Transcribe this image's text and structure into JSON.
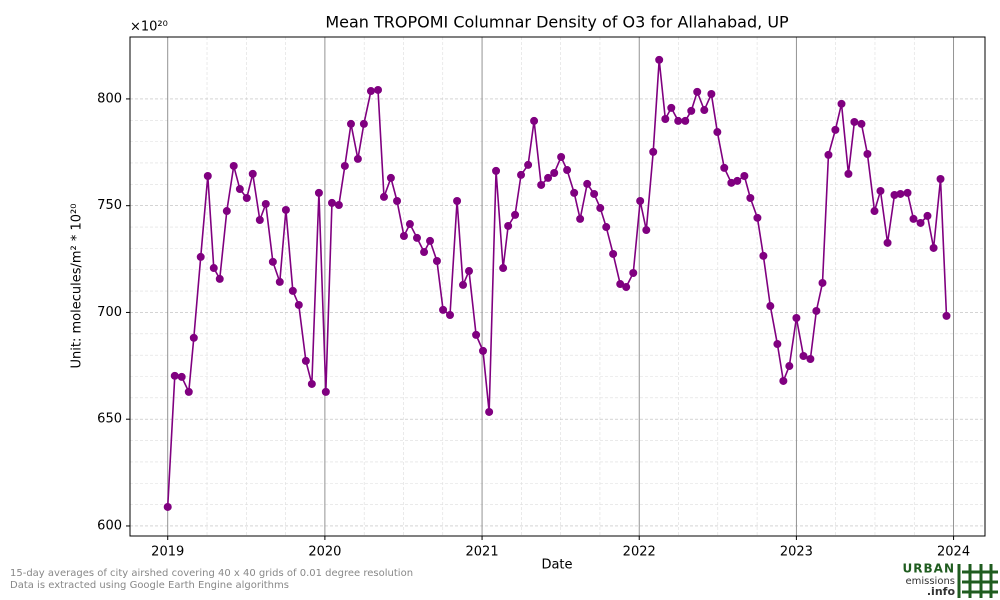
{
  "chart_data": {
    "type": "line",
    "title": "Mean TROPOMI Columnar Density of O3 for Allahabad, UP",
    "x_label": "Date",
    "y_label": "Unit: molecules/m² * 10²⁰",
    "y_offset_label": "×10²⁰",
    "xlim": [
      2018.76,
      2024.2
    ],
    "ylim": [
      595.3,
      829
    ],
    "xticks": [
      2019,
      2020,
      2021,
      2022,
      2023,
      2024
    ],
    "yticks": [
      600,
      650,
      700,
      750,
      800
    ],
    "grid": true,
    "series": [
      {
        "color": "#800080",
        "x": [
          2019.0,
          2019.045,
          2019.089,
          2019.134,
          2019.166,
          2019.21,
          2019.255,
          2019.293,
          2019.331,
          2019.376,
          2019.42,
          2019.459,
          2019.503,
          2019.541,
          2019.586,
          2019.624,
          2019.669,
          2019.713,
          2019.752,
          2019.796,
          2019.834,
          2019.879,
          2019.917,
          2019.962,
          2020.006,
          2020.045,
          2020.089,
          2020.127,
          2020.166,
          2020.21,
          2020.248,
          2020.293,
          2020.338,
          2020.376,
          2020.42,
          2020.459,
          2020.503,
          2020.541,
          2020.586,
          2020.631,
          2020.669,
          2020.713,
          2020.752,
          2020.796,
          2020.841,
          2020.879,
          2020.917,
          2020.962,
          2021.006,
          2021.045,
          2021.089,
          2021.134,
          2021.166,
          2021.21,
          2021.248,
          2021.293,
          2021.331,
          2021.376,
          2021.42,
          2021.459,
          2021.503,
          2021.541,
          2021.586,
          2021.624,
          2021.669,
          2021.713,
          2021.752,
          2021.79,
          2021.834,
          2021.879,
          2021.917,
          2021.962,
          2022.006,
          2022.045,
          2022.089,
          2022.127,
          2022.166,
          2022.204,
          2022.248,
          2022.293,
          2022.331,
          2022.369,
          2022.414,
          2022.459,
          2022.497,
          2022.541,
          2022.586,
          2022.624,
          2022.669,
          2022.707,
          2022.752,
          2022.79,
          2022.834,
          2022.879,
          2022.917,
          2022.955,
          2023.0,
          2023.045,
          2023.089,
          2023.127,
          2023.166,
          2023.204,
          2023.248,
          2023.287,
          2023.331,
          2023.369,
          2023.414,
          2023.452,
          2023.497,
          2023.535,
          2023.58,
          2023.624,
          2023.662,
          2023.707,
          2023.745,
          2023.79,
          2023.834,
          2023.873,
          2023.917,
          2023.955
        ],
        "values": [
          608.9,
          670.3,
          669.8,
          662.8,
          688.1,
          726.0,
          763.9,
          720.8,
          715.7,
          747.5,
          768.6,
          757.8,
          753.6,
          764.9,
          743.3,
          750.8,
          723.7,
          714.3,
          748.0,
          710.1,
          703.5,
          677.3,
          666.5,
          756.0,
          662.8,
          751.3,
          750.3,
          768.6,
          788.3,
          771.9,
          788.3,
          803.7,
          804.2,
          754.1,
          763.0,
          752.2,
          735.8,
          741.4,
          734.9,
          728.3,
          733.5,
          724.1,
          701.2,
          698.8,
          752.2,
          712.9,
          719.4,
          689.5,
          682.0,
          653.4,
          766.3,
          720.8,
          740.5,
          745.7,
          764.4,
          769.1,
          789.7,
          759.7,
          763.0,
          765.3,
          772.8,
          766.7,
          756.0,
          743.8,
          760.2,
          755.5,
          748.9,
          740.0,
          727.4,
          713.3,
          711.9,
          718.5,
          752.2,
          738.6,
          775.2,
          818.3,
          790.6,
          795.8,
          789.7,
          789.7,
          794.4,
          803.3,
          794.8,
          802.3,
          784.5,
          767.7,
          760.7,
          761.6,
          763.9,
          753.6,
          744.3,
          726.5,
          703.0,
          685.2,
          667.9,
          674.9,
          697.4,
          679.6,
          678.2,
          700.7,
          713.8,
          773.8,
          785.5,
          797.7,
          764.9,
          789.2,
          788.3,
          774.2,
          747.5,
          756.9,
          732.6,
          755.0,
          755.5,
          756.0,
          743.8,
          741.9,
          745.2,
          730.2,
          762.5,
          698.4
        ]
      }
    ]
  },
  "footnote": [
    "15-day averages of city airshed covering 40 x 40 grids of 0.01 degree resolution",
    "Data is extracted using Google Earth Engine algorithms"
  ],
  "logo": {
    "line1": "URBAN",
    "line2": "emissions",
    "line3": ".info"
  }
}
